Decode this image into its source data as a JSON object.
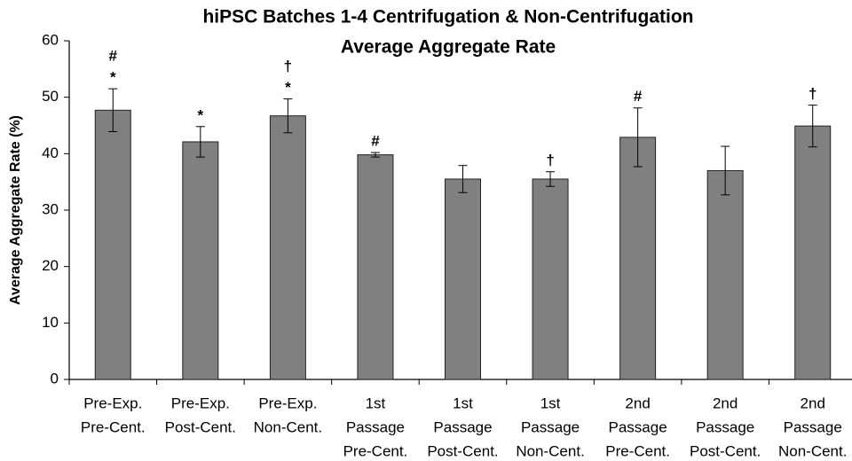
{
  "chart_data": {
    "type": "bar",
    "title": [
      "hiPSC Batches 1-4 Centrifugation & Non-Centrifugation",
      "Average Aggregate Rate"
    ],
    "y_label": "Average Aggregate Rate (%)",
    "categories": [
      [
        "Pre-Exp.",
        "Pre-Cent."
      ],
      [
        "Pre-Exp.",
        "Post-Cent."
      ],
      [
        "Pre-Exp.",
        "Non-Cent."
      ],
      [
        "1st",
        "Passage",
        "Pre-Cent."
      ],
      [
        "1st",
        "Passage",
        "Post-Cent."
      ],
      [
        "1st",
        "Passage",
        "Non-Cent."
      ],
      [
        "2nd",
        "Passage",
        "Pre-Cent."
      ],
      [
        "2nd",
        "Passage",
        "Post-Cent."
      ],
      [
        "2nd",
        "Passage",
        "Non-Cent."
      ]
    ],
    "values": [
      47.7,
      42.1,
      46.7,
      39.8,
      35.5,
      35.5,
      42.9,
      37.0,
      44.9
    ],
    "errors": [
      3.8,
      2.7,
      3.0,
      0.4,
      2.4,
      1.3,
      5.2,
      4.3,
      3.7
    ],
    "annotations": [
      [
        "#",
        "*"
      ],
      [
        "*"
      ],
      [
        "†",
        "*"
      ],
      [
        "#"
      ],
      [],
      [
        "†"
      ],
      [
        "#"
      ],
      [],
      [
        "†"
      ]
    ],
    "color": "#808080",
    "ylim": [
      0,
      60
    ],
    "yticks": [
      0,
      10,
      20,
      30,
      40,
      50,
      60
    ],
    "grid": false
  }
}
